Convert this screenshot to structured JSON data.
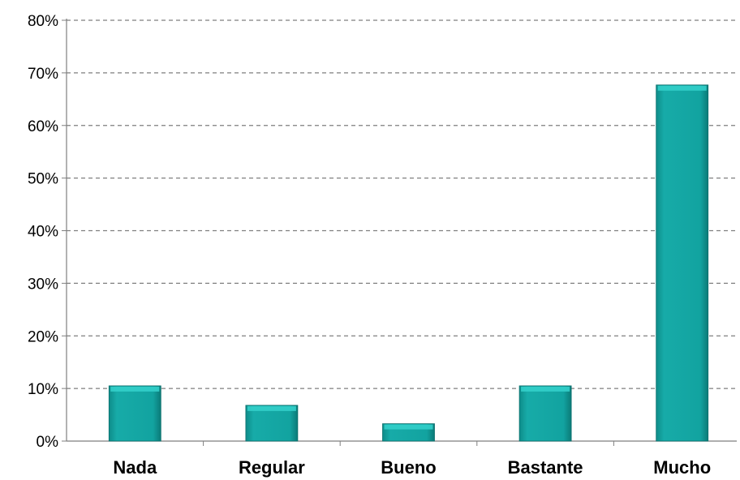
{
  "chart_data": {
    "type": "bar",
    "categories": [
      "Nada",
      "Regular",
      "Bueno",
      "Bastante",
      "Mucho"
    ],
    "values": [
      10.5,
      6.8,
      3.3,
      10.5,
      67.7
    ],
    "unit": "%",
    "ylim": [
      0,
      80
    ],
    "yticks": [
      "0%",
      "10%",
      "20%",
      "30%",
      "40%",
      "50%",
      "60%",
      "70%",
      "80%"
    ],
    "grid": true,
    "grid_style": "dashed",
    "legend": "none",
    "title": "",
    "xlabel": "",
    "ylabel": "",
    "colors": {
      "bar": "#12a3a0",
      "bar_top": "#33cfca",
      "axis": "#7f7f7f",
      "grid": "#7f7f7f"
    }
  }
}
